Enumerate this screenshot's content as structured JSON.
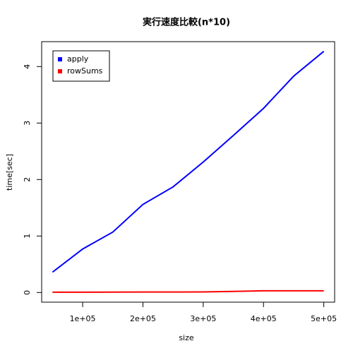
{
  "chart_data": {
    "type": "line",
    "title": "実行速度比較(n*10)",
    "x_label": "size",
    "y_label": "time[sec]",
    "x": [
      50000,
      100000,
      150000,
      200000,
      250000,
      300000,
      350000,
      400000,
      450000,
      500000
    ],
    "series": [
      {
        "name": "apply",
        "color": "#0000ff",
        "values": [
          0.36,
          0.77,
          1.07,
          1.56,
          1.87,
          2.31,
          2.78,
          3.26,
          3.83,
          4.27
        ]
      },
      {
        "name": "rowSums",
        "color": "#ff0000",
        "values": [
          0.005,
          0.006,
          0.007,
          0.008,
          0.009,
          0.01,
          0.02,
          0.03,
          0.03,
          0.03
        ]
      }
    ],
    "xlim": [
      32000,
      518000
    ],
    "ylim": [
      -0.171,
      4.441
    ],
    "xticks": [
      {
        "value": 100000,
        "label": "1e+05"
      },
      {
        "value": 200000,
        "label": "2e+05"
      },
      {
        "value": 300000,
        "label": "3e+05"
      },
      {
        "value": 400000,
        "label": "4e+05"
      },
      {
        "value": 500000,
        "label": "5e+05"
      }
    ],
    "yticks": [
      0,
      1,
      2,
      3,
      4
    ],
    "legend": "top-left"
  }
}
